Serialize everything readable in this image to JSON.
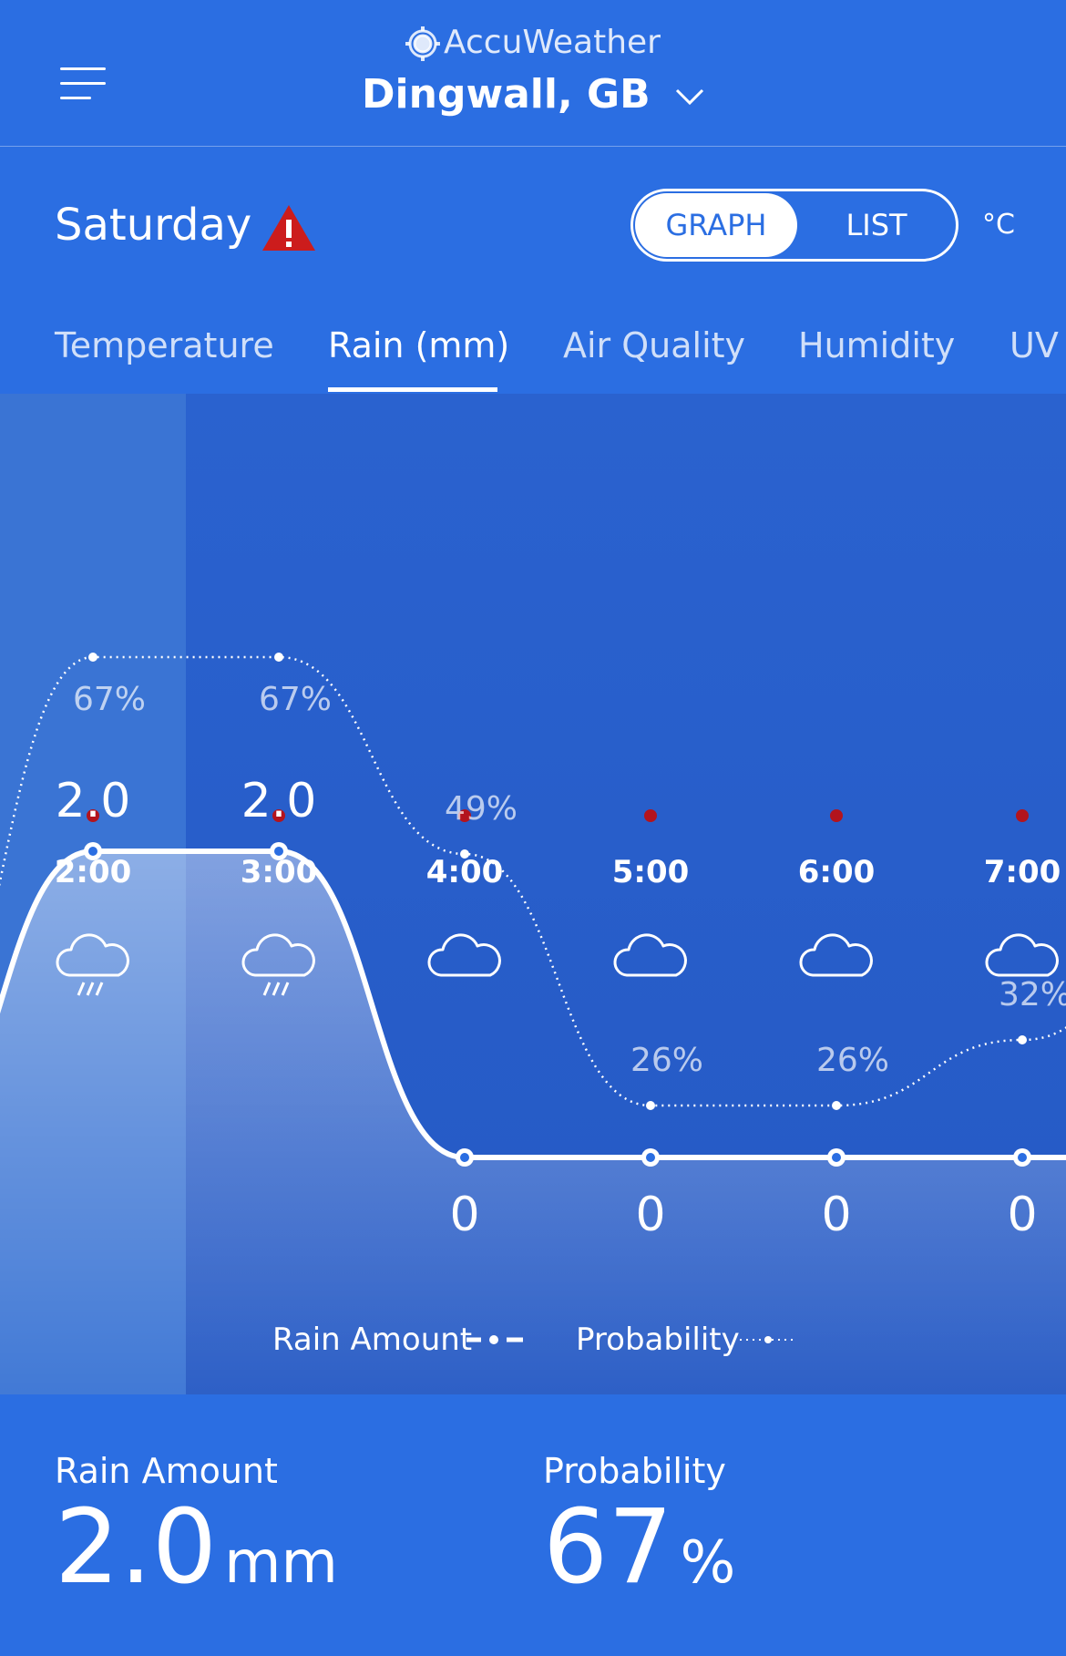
{
  "header": {
    "brand": "AccuWeather",
    "location": "Dingwall, GB"
  },
  "day": {
    "title": "Saturday",
    "view_toggle": {
      "graph": "GRAPH",
      "list": "LIST",
      "selected": "GRAPH"
    },
    "unit": "°C"
  },
  "tabs": [
    {
      "label": "Temperature",
      "active": false
    },
    {
      "label": "Rain (mm)",
      "active": true
    },
    {
      "label": "Air Quality",
      "active": false
    },
    {
      "label": "Humidity",
      "active": false
    },
    {
      "label": "UV I",
      "active": false
    }
  ],
  "chart_data": {
    "type": "line",
    "categories": [
      "2:00",
      "3:00",
      "4:00",
      "5:00",
      "6:00",
      "7:00"
    ],
    "selected_index": 0,
    "icons": [
      "rain-cloud-icon",
      "rain-cloud-icon",
      "cloud-icon",
      "cloud-icon",
      "cloud-icon",
      "cloud-icon"
    ],
    "series": [
      {
        "name": "Rain Amount",
        "values": [
          2.0,
          2.0,
          0,
          0,
          0,
          0
        ],
        "labels": [
          "2.0",
          "2.0",
          "0",
          "0",
          "0",
          "0"
        ]
      },
      {
        "name": "Probability",
        "values": [
          67,
          67,
          49,
          26,
          26,
          32
        ],
        "labels": [
          "67%",
          "67%",
          "49%",
          "26%",
          "26%",
          "32%"
        ]
      }
    ]
  },
  "legend": {
    "rain_amount": "Rain Amount",
    "probability": "Probability"
  },
  "summary": {
    "rain_label": "Rain Amount",
    "rain_value": "2.0",
    "rain_unit": "mm",
    "prob_label": "Probability",
    "prob_value": "67",
    "prob_unit": "%"
  },
  "colors": {
    "background": "#2b6ee2",
    "alert_red": "#cc1c1c",
    "graph_bg": "#2559c4"
  }
}
